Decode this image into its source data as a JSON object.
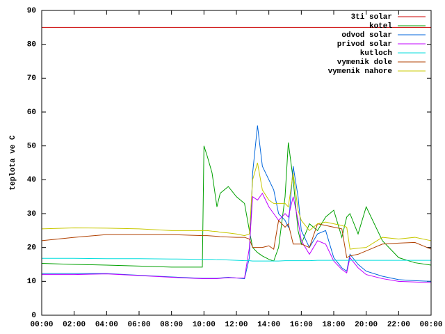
{
  "chart_data": {
    "type": "line",
    "y_label": "teplota ve C",
    "x": [
      0,
      2,
      4,
      6,
      8,
      9.9,
      10,
      10.2,
      10.5,
      10.8,
      11,
      11.5,
      12,
      12.5,
      12.8,
      13,
      13.3,
      13.6,
      14,
      14.3,
      14.6,
      15,
      15.2,
      15.5,
      15.8,
      16,
      16.5,
      17,
      17.5,
      18,
      18.5,
      18.8,
      19,
      19.5,
      20,
      21,
      22,
      23,
      24
    ],
    "xlim": [
      0,
      24
    ],
    "xticks": [
      {
        "value": 0,
        "label": "00:00"
      },
      {
        "value": 2,
        "label": "02:00"
      },
      {
        "value": 4,
        "label": "04:00"
      },
      {
        "value": 6,
        "label": "06:00"
      },
      {
        "value": 8,
        "label": "08:00"
      },
      {
        "value": 10,
        "label": "10:00"
      },
      {
        "value": 12,
        "label": "12:00"
      },
      {
        "value": 14,
        "label": "14:00"
      },
      {
        "value": 16,
        "label": "16:00"
      },
      {
        "value": 18,
        "label": "18:00"
      },
      {
        "value": 20,
        "label": "20:00"
      },
      {
        "value": 22,
        "label": "22:00"
      },
      {
        "value": 24,
        "label": "00:00"
      }
    ],
    "ylim": [
      0,
      90
    ],
    "yticks": [
      0,
      10,
      20,
      30,
      40,
      50,
      60,
      70,
      80,
      90
    ],
    "legend": "top right",
    "series": [
      {
        "name": "3ti solar",
        "color": "#cc0000",
        "values": [
          85,
          85,
          85,
          85,
          85,
          85,
          85,
          85,
          85,
          85,
          85,
          85,
          85,
          85,
          85,
          85,
          85,
          85,
          85,
          85,
          85,
          85,
          85,
          85,
          85,
          85,
          85,
          85,
          85,
          85,
          85,
          85,
          85,
          85,
          85,
          85,
          85,
          85,
          85
        ]
      },
      {
        "name": "kotel",
        "color": "#00a000",
        "values": [
          15.3,
          15,
          14.8,
          14.5,
          14.2,
          14.2,
          50,
          47,
          42,
          32,
          36,
          38,
          35,
          33,
          25,
          20,
          18.5,
          17.5,
          16.5,
          16,
          20,
          35,
          51,
          40,
          25,
          21,
          27,
          25,
          29,
          31,
          23,
          29,
          30,
          24,
          32,
          22,
          17,
          15.5,
          14.8
        ]
      },
      {
        "name": "odvod solar",
        "color": "#0066dd",
        "values": [
          12.3,
          12.3,
          12.3,
          11.8,
          11.3,
          10.9,
          10.9,
          10.9,
          10.9,
          10.9,
          11,
          11.2,
          11,
          10.8,
          17,
          42,
          56,
          44,
          40,
          37,
          30,
          28,
          26,
          44,
          35,
          25,
          20,
          24,
          25,
          17,
          14,
          13,
          18,
          15,
          13,
          11.5,
          10.5,
          10.2,
          10
        ]
      },
      {
        "name": "privod solar",
        "color": "#c000ff",
        "values": [
          12,
          12,
          12.2,
          11.7,
          11.2,
          10.8,
          10.8,
          10.8,
          10.8,
          10.8,
          10.9,
          11.1,
          11,
          11,
          20,
          35,
          34,
          36,
          32,
          30,
          28,
          30,
          29,
          35,
          28,
          22,
          18,
          22,
          21,
          16,
          13.5,
          12.5,
          17,
          14,
          12,
          10.8,
          10,
          9.8,
          9.6
        ]
      },
      {
        "name": "kutloch",
        "color": "#00dddd",
        "values": [
          16.8,
          16.8,
          16.7,
          16.7,
          16.6,
          16.5,
          16.5,
          16.5,
          16.5,
          16.4,
          16.4,
          16.3,
          16.2,
          16.1,
          16.1,
          16,
          16,
          16,
          16,
          16,
          16,
          16.1,
          16.1,
          16.1,
          16.1,
          16.1,
          16.1,
          16.2,
          16.2,
          16.2,
          16.2,
          16.2,
          16.2,
          16.2,
          16.2,
          16.2,
          16.2,
          16.2,
          16.2
        ]
      },
      {
        "name": "vymenik dole",
        "color": "#b04000",
        "values": [
          22,
          23,
          23.8,
          23.8,
          23.8,
          23.5,
          23.5,
          23.5,
          23.4,
          23.3,
          23.2,
          23.1,
          23,
          23,
          22.5,
          20,
          20,
          20,
          20.5,
          19.5,
          28,
          26,
          27,
          21,
          21,
          21,
          20,
          27,
          26.5,
          26,
          25.5,
          17,
          17.5,
          18,
          19,
          21,
          21.3,
          21.5,
          19.5
        ]
      },
      {
        "name": "vymenik nahore",
        "color": "#c8c800",
        "values": [
          25.5,
          25.8,
          25.7,
          25.5,
          25,
          25,
          25,
          25,
          24.8,
          24.7,
          24.5,
          24.3,
          24,
          23.5,
          24,
          40,
          45,
          37,
          34,
          33,
          33,
          33,
          32,
          42,
          31,
          28,
          25,
          27,
          27.5,
          27,
          26.5,
          26,
          19.5,
          19.8,
          20,
          23,
          22.5,
          23,
          22
        ]
      }
    ]
  }
}
